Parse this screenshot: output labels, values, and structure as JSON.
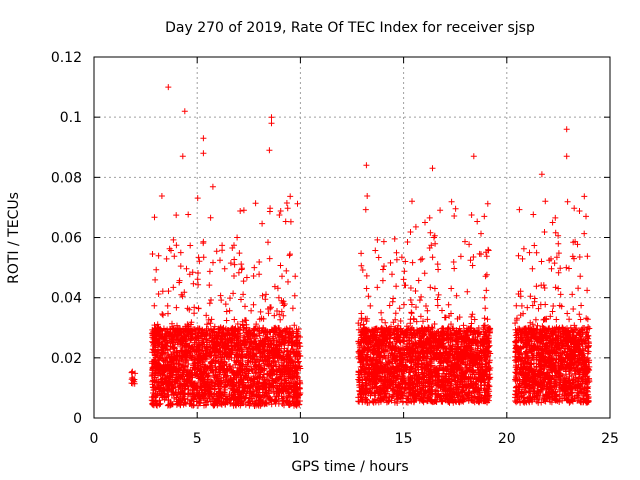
{
  "chart_data": {
    "type": "scatter",
    "title": "Day 270 of 2019, Rate Of TEC Index for receiver sjsp",
    "xlabel": "GPS time / hours",
    "ylabel": "ROTI / TECUs",
    "xlim": [
      0,
      25
    ],
    "ylim": [
      0,
      0.12
    ],
    "xticks": [
      0,
      5,
      10,
      15,
      20,
      25
    ],
    "yticks": [
      0,
      0.02,
      0.04,
      0.06,
      0.08,
      0.1,
      0.12
    ],
    "xtick_labels": [
      "0",
      "5",
      "10",
      "15",
      "20",
      "25"
    ],
    "ytick_labels": [
      "0",
      "0.02",
      "0.04",
      "0.06",
      "0.08",
      "0.1",
      "0.12"
    ],
    "grid": true,
    "marker": "+",
    "color": "#ff0000",
    "series": [
      {
        "name": "sjsp",
        "segments": [
          {
            "x_range": [
              1.8,
              2.0
            ],
            "y_base": [
              0.011,
              0.016
            ],
            "count": 12
          },
          {
            "x_range": [
              2.8,
              10.0
            ],
            "y_base": [
              0.004,
              0.03
            ],
            "count": 2800
          },
          {
            "x_range": [
              12.8,
              19.2
            ],
            "y_base": [
              0.005,
              0.03
            ],
            "count": 2600
          },
          {
            "x_range": [
              20.4,
              24.0
            ],
            "y_base": [
              0.005,
              0.03
            ],
            "count": 1500
          }
        ],
        "notable_points": [
          {
            "x": 3.6,
            "y": 0.11
          },
          {
            "x": 4.4,
            "y": 0.102
          },
          {
            "x": 4.3,
            "y": 0.087
          },
          {
            "x": 5.3,
            "y": 0.093
          },
          {
            "x": 5.3,
            "y": 0.088
          },
          {
            "x": 8.6,
            "y": 0.1
          },
          {
            "x": 8.6,
            "y": 0.098
          },
          {
            "x": 8.5,
            "y": 0.089
          },
          {
            "x": 13.2,
            "y": 0.084
          },
          {
            "x": 16.4,
            "y": 0.083
          },
          {
            "x": 18.4,
            "y": 0.087
          },
          {
            "x": 22.9,
            "y": 0.096
          },
          {
            "x": 22.9,
            "y": 0.087
          },
          {
            "x": 21.7,
            "y": 0.081
          }
        ]
      }
    ]
  }
}
